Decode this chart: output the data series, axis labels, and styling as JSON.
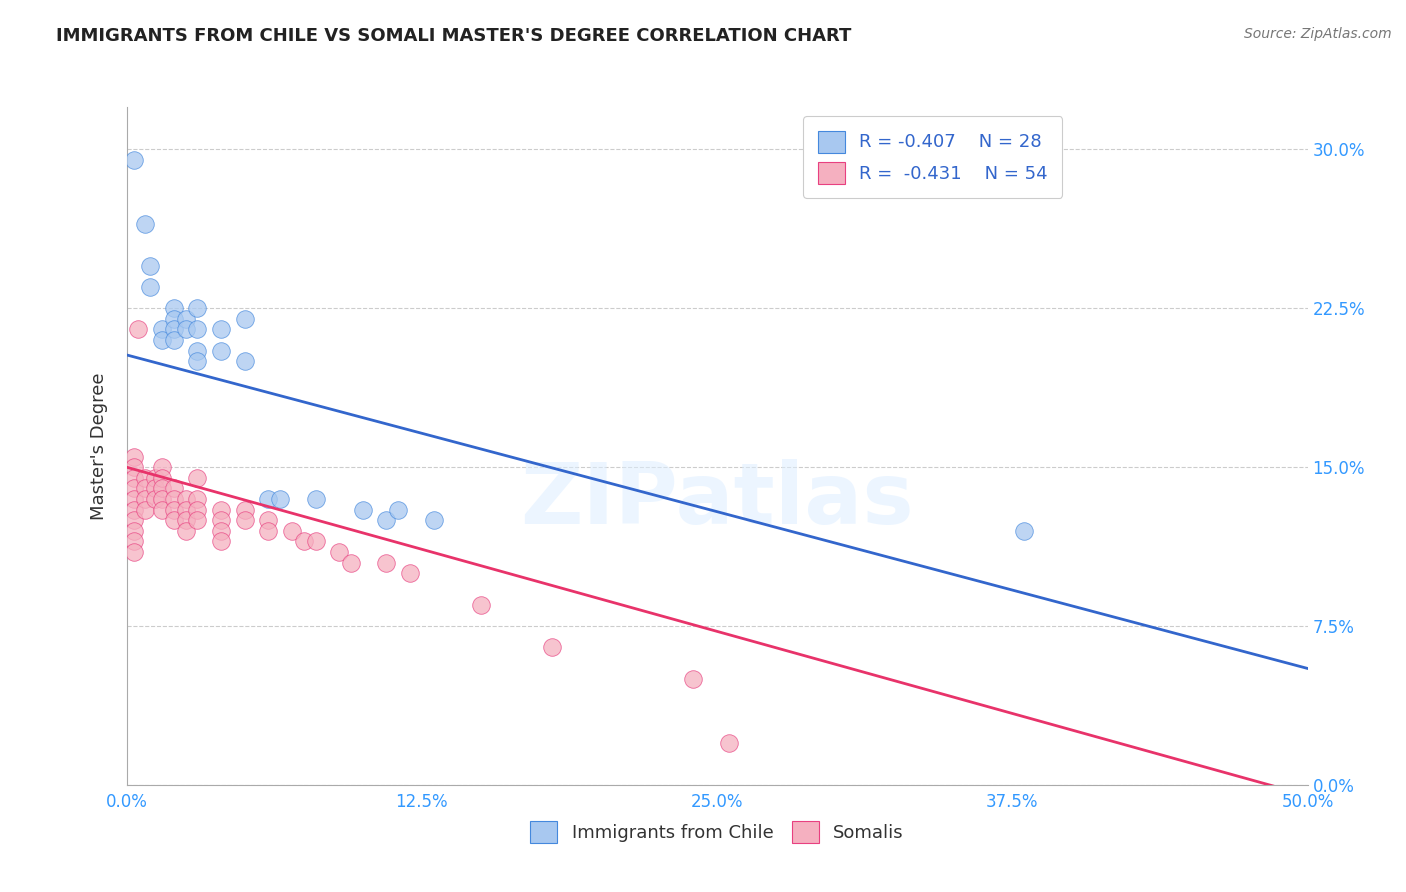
{
  "title": "IMMIGRANTS FROM CHILE VS SOMALI MASTER'S DEGREE CORRELATION CHART",
  "source": "Source: ZipAtlas.com",
  "xlabel_vals": [
    0,
    12.5,
    25.0,
    37.5,
    50.0
  ],
  "ylabel_vals": [
    0,
    7.5,
    15.0,
    22.5,
    30.0
  ],
  "ylabel_label": "Master's Degree",
  "xmin": 0,
  "xmax": 50,
  "ymin": 0,
  "ymax": 32,
  "legend_blue_r": "R = -0.407",
  "legend_blue_n": "N = 28",
  "legend_pink_r": "R =  -0.431",
  "legend_pink_n": "N = 54",
  "blue_color": "#A8C8F0",
  "pink_color": "#F5B0C0",
  "blue_edge_color": "#4488DD",
  "pink_edge_color": "#E84080",
  "blue_line_color": "#3366CC",
  "pink_line_color": "#E8336A",
  "watermark": "ZIPatlas",
  "blue_scatter": [
    [
      0.3,
      29.5
    ],
    [
      0.8,
      26.5
    ],
    [
      1.0,
      24.5
    ],
    [
      1.0,
      23.5
    ],
    [
      1.5,
      21.5
    ],
    [
      1.5,
      21.0
    ],
    [
      2.0,
      22.5
    ],
    [
      2.0,
      22.0
    ],
    [
      2.0,
      21.5
    ],
    [
      2.0,
      21.0
    ],
    [
      2.5,
      22.0
    ],
    [
      2.5,
      21.5
    ],
    [
      3.0,
      22.5
    ],
    [
      3.0,
      21.5
    ],
    [
      3.0,
      20.5
    ],
    [
      3.0,
      20.0
    ],
    [
      4.0,
      21.5
    ],
    [
      4.0,
      20.5
    ],
    [
      5.0,
      22.0
    ],
    [
      5.0,
      20.0
    ],
    [
      6.0,
      13.5
    ],
    [
      6.5,
      13.5
    ],
    [
      8.0,
      13.5
    ],
    [
      10.0,
      13.0
    ],
    [
      11.0,
      12.5
    ],
    [
      11.5,
      13.0
    ],
    [
      13.0,
      12.5
    ],
    [
      38.0,
      12.0
    ]
  ],
  "pink_scatter": [
    [
      0.3,
      15.5
    ],
    [
      0.3,
      15.0
    ],
    [
      0.3,
      14.5
    ],
    [
      0.3,
      14.0
    ],
    [
      0.3,
      13.5
    ],
    [
      0.3,
      13.0
    ],
    [
      0.3,
      12.5
    ],
    [
      0.3,
      12.0
    ],
    [
      0.3,
      11.5
    ],
    [
      0.3,
      11.0
    ],
    [
      0.5,
      21.5
    ],
    [
      0.8,
      14.5
    ],
    [
      0.8,
      14.0
    ],
    [
      0.8,
      13.5
    ],
    [
      0.8,
      13.0
    ],
    [
      1.2,
      14.5
    ],
    [
      1.2,
      14.0
    ],
    [
      1.2,
      13.5
    ],
    [
      1.5,
      15.0
    ],
    [
      1.5,
      14.5
    ],
    [
      1.5,
      14.0
    ],
    [
      1.5,
      13.5
    ],
    [
      1.5,
      13.0
    ],
    [
      2.0,
      14.0
    ],
    [
      2.0,
      13.5
    ],
    [
      2.0,
      13.0
    ],
    [
      2.0,
      12.5
    ],
    [
      2.5,
      13.5
    ],
    [
      2.5,
      13.0
    ],
    [
      2.5,
      12.5
    ],
    [
      2.5,
      12.0
    ],
    [
      3.0,
      14.5
    ],
    [
      3.0,
      13.5
    ],
    [
      3.0,
      13.0
    ],
    [
      3.0,
      12.5
    ],
    [
      4.0,
      13.0
    ],
    [
      4.0,
      12.5
    ],
    [
      4.0,
      12.0
    ],
    [
      4.0,
      11.5
    ],
    [
      5.0,
      13.0
    ],
    [
      5.0,
      12.5
    ],
    [
      6.0,
      12.5
    ],
    [
      6.0,
      12.0
    ],
    [
      7.0,
      12.0
    ],
    [
      7.5,
      11.5
    ],
    [
      8.0,
      11.5
    ],
    [
      9.0,
      11.0
    ],
    [
      9.5,
      10.5
    ],
    [
      11.0,
      10.5
    ],
    [
      12.0,
      10.0
    ],
    [
      15.0,
      8.5
    ],
    [
      18.0,
      6.5
    ],
    [
      24.0,
      5.0
    ],
    [
      25.5,
      2.0
    ]
  ],
  "blue_line": [
    [
      0,
      20.3
    ],
    [
      50,
      5.5
    ]
  ],
  "pink_line": [
    [
      0,
      15.0
    ],
    [
      50,
      -0.5
    ]
  ]
}
